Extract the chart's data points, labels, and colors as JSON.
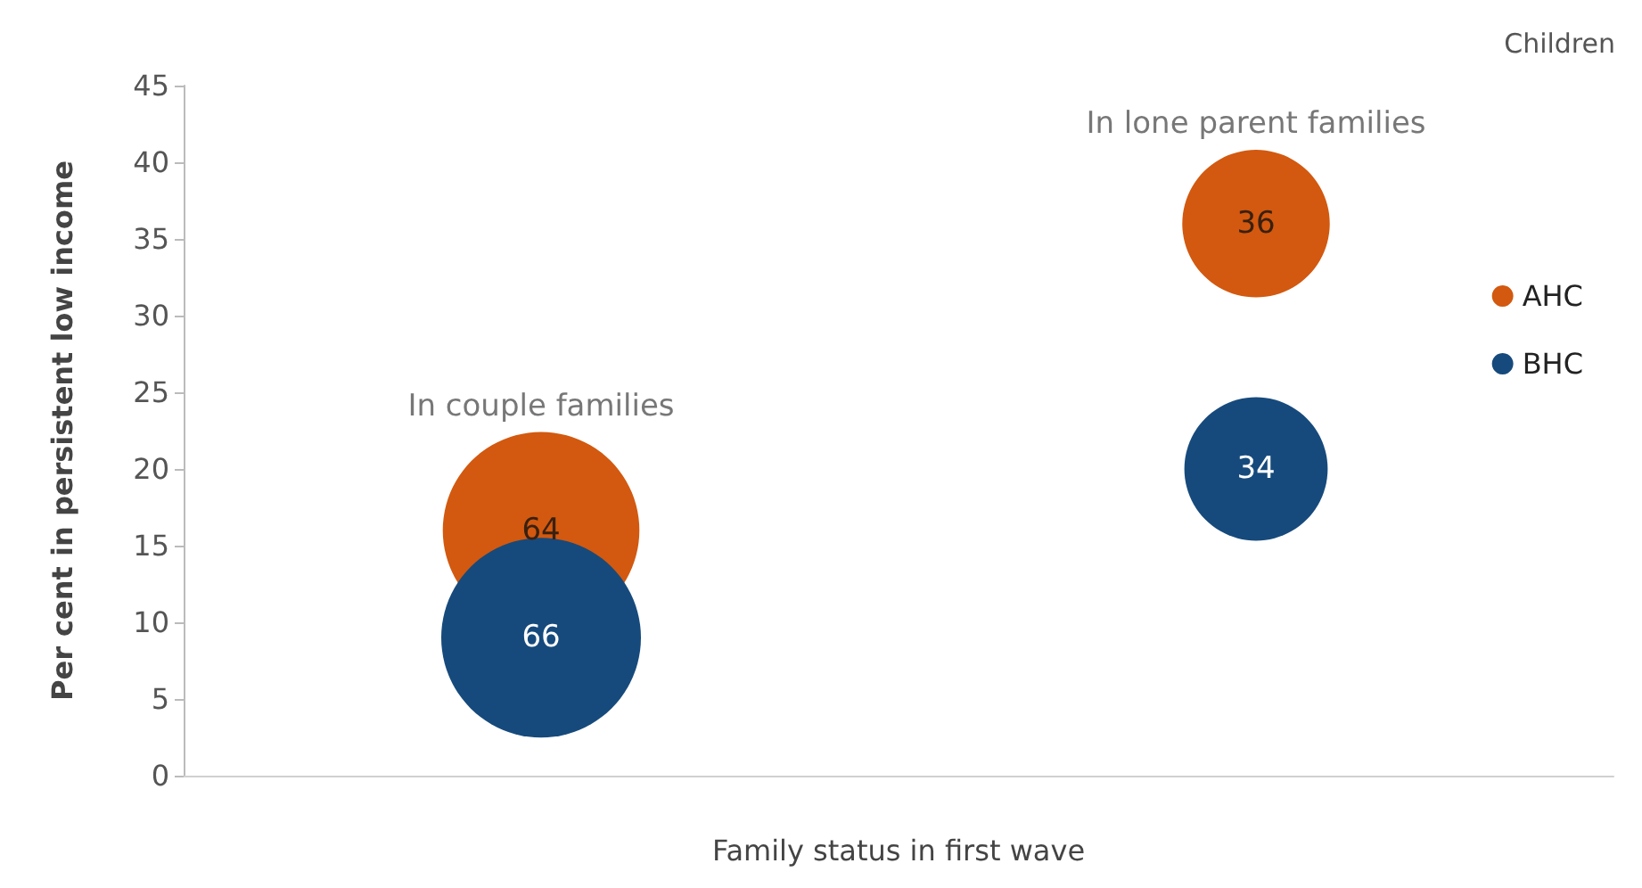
{
  "chart_data": {
    "type": "bubble",
    "title": "Children",
    "xlabel": "Family status in first wave",
    "ylabel": "Per cent in persistent low income",
    "categories": [
      null,
      null
    ],
    "series": [
      {
        "name": "AHC",
        "color": "#d2590f",
        "values": [
          16,
          36
        ],
        "sizes": [
          64,
          36
        ],
        "value_labels": [
          "64",
          "36"
        ]
      },
      {
        "name": "BHC",
        "color": "#164a7c",
        "values": [
          9,
          20
        ],
        "sizes": [
          66,
          34
        ],
        "value_labels": [
          "66",
          "34"
        ]
      }
    ],
    "annotations": [
      "In couple families",
      "In lone parent families"
    ],
    "ylim": [
      0,
      45
    ],
    "yticks": [
      0,
      5,
      10,
      15,
      20,
      25,
      30,
      35,
      40,
      45
    ],
    "grid": false,
    "legend": "right",
    "marker": "circle"
  }
}
